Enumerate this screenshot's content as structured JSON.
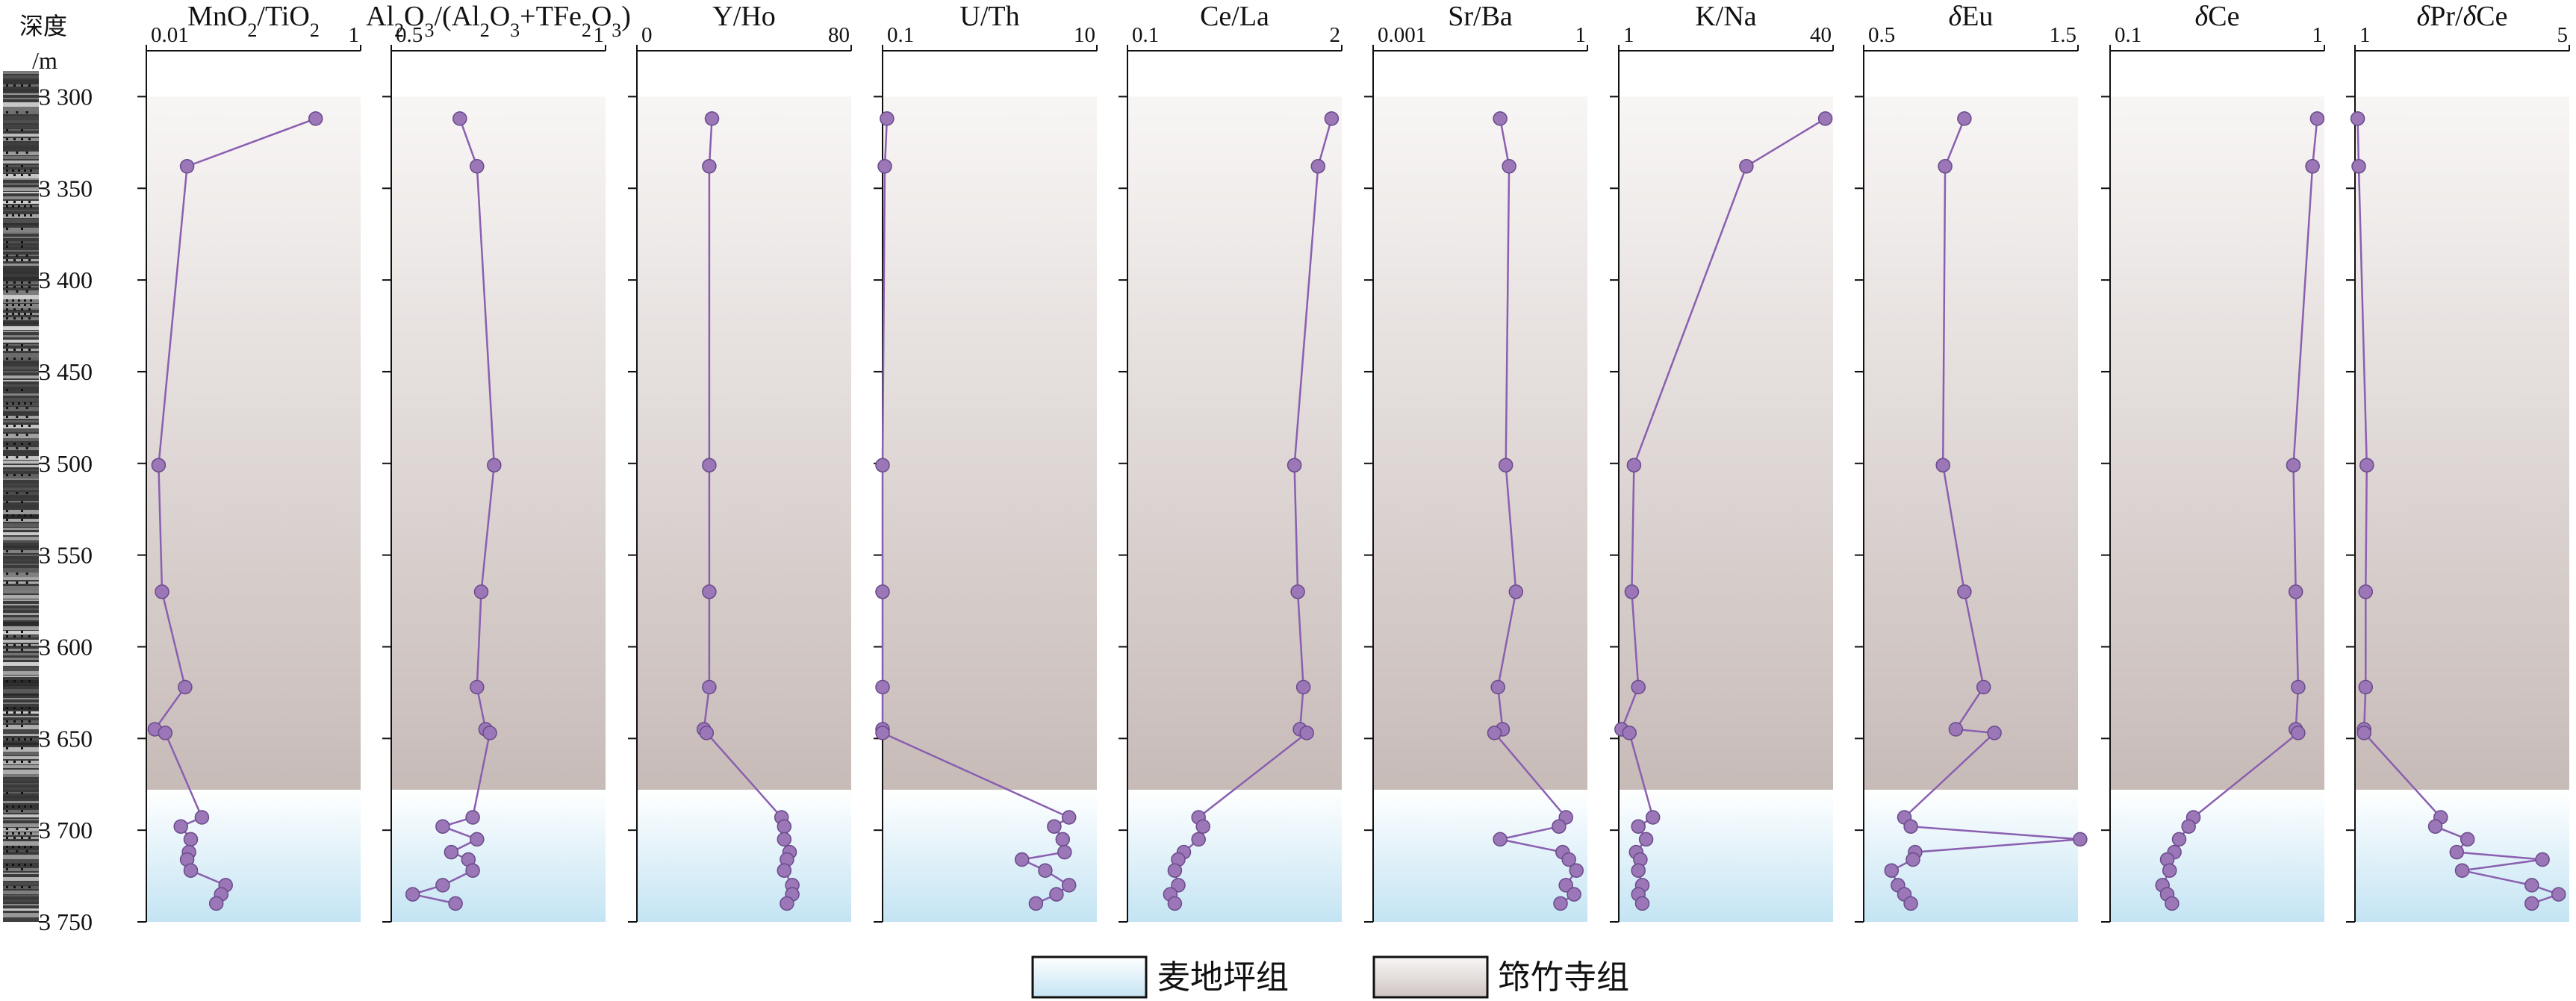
{
  "chart_data": {
    "type": "scatter",
    "depth_axis": {
      "title_line1": "深度",
      "title_line2": "/m",
      "ylim": [
        3275,
        3750
      ],
      "ticks": [
        3300,
        3350,
        3400,
        3450,
        3500,
        3550,
        3600,
        3650,
        3700,
        3750
      ],
      "tick_labels": [
        "3 300",
        "3 350",
        "3 400",
        "3 450",
        "3 500",
        "3 550",
        "3 600",
        "3 650",
        "3 700",
        "3 750"
      ]
    },
    "formation_boundary_depth": 3678,
    "depths": [
      3312,
      3338,
      3501,
      3570,
      3622,
      3645,
      3647,
      3693,
      3698,
      3705,
      3712,
      3716,
      3722,
      3730,
      3735,
      3740
    ],
    "panels": [
      {
        "id": "mno2-tio2",
        "title": "MnO2/TiO2",
        "scale": "log",
        "xlim": [
          0.01,
          1
        ],
        "tick_labels": [
          "0.01",
          "1"
        ],
        "values": [
          0.38,
          0.024,
          0.013,
          0.014,
          0.023,
          0.012,
          0.015,
          0.033,
          0.021,
          0.026,
          0.025,
          0.024,
          0.026,
          0.055,
          0.05,
          0.045
        ]
      },
      {
        "id": "al-ratio",
        "title": "Al2O3/(Al2O3+TFe2O3)",
        "scale": "linear",
        "xlim": [
          0.5,
          1
        ],
        "tick_labels": [
          "0.5",
          "1"
        ],
        "values": [
          0.66,
          0.7,
          0.74,
          0.71,
          0.7,
          0.72,
          0.73,
          0.69,
          0.62,
          0.7,
          0.64,
          0.68,
          0.69,
          0.62,
          0.55,
          0.65
        ]
      },
      {
        "id": "y-ho",
        "title": "Y/Ho",
        "scale": "linear",
        "xlim": [
          0,
          80
        ],
        "tick_labels": [
          "0",
          "80"
        ],
        "values": [
          28,
          27,
          27,
          27,
          27,
          25,
          26,
          54,
          55,
          55,
          57,
          56,
          55,
          58,
          58,
          56
        ]
      },
      {
        "id": "u-th",
        "title": "U/Th",
        "scale": "log",
        "xlim": [
          0.1,
          10
        ],
        "tick_labels": [
          "0.1",
          "10"
        ],
        "values": [
          0.11,
          0.105,
          0.1,
          0.1,
          0.1,
          0.1,
          0.1,
          5.5,
          4.0,
          4.8,
          5.0,
          2.0,
          3.3,
          5.5,
          4.2,
          2.7
        ]
      },
      {
        "id": "ce-la",
        "title": "Ce/La",
        "scale": "linear",
        "xlim": [
          0.1,
          2
        ],
        "tick_labels": [
          "0.1",
          "2"
        ],
        "values": [
          1.91,
          1.79,
          1.58,
          1.61,
          1.66,
          1.63,
          1.69,
          0.73,
          0.77,
          0.73,
          0.6,
          0.55,
          0.52,
          0.55,
          0.48,
          0.52
        ]
      },
      {
        "id": "sr-ba",
        "title": "Sr/Ba",
        "scale": "log",
        "xlim": [
          0.001,
          1
        ],
        "tick_labels": [
          "0.001",
          "1"
        ],
        "values": [
          0.06,
          0.08,
          0.072,
          0.1,
          0.056,
          0.065,
          0.05,
          0.5,
          0.4,
          0.06,
          0.45,
          0.55,
          0.7,
          0.5,
          0.65,
          0.42
        ]
      },
      {
        "id": "k-na",
        "title": "K/Na",
        "scale": "log",
        "xlim": [
          1,
          40
        ],
        "tick_labels": [
          "1",
          "40"
        ],
        "values": [
          35,
          9,
          1.3,
          1.25,
          1.4,
          1.05,
          1.2,
          1.8,
          1.4,
          1.6,
          1.35,
          1.45,
          1.4,
          1.5,
          1.4,
          1.5
        ]
      },
      {
        "id": "delta-eu",
        "title": "δEu",
        "scale": "linear",
        "xlim": [
          0.5,
          1.5
        ],
        "tick_labels": [
          "0.5",
          "1.5"
        ],
        "values": [
          0.97,
          0.88,
          0.87,
          0.97,
          1.06,
          0.93,
          1.11,
          0.69,
          0.72,
          1.51,
          0.74,
          0.73,
          0.63,
          0.66,
          0.69,
          0.72
        ]
      },
      {
        "id": "delta-ce",
        "title": "δCe",
        "scale": "linear",
        "xlim": [
          0.1,
          1
        ],
        "tick_labels": [
          "0.1",
          "1"
        ],
        "values": [
          0.97,
          0.95,
          0.87,
          0.88,
          0.89,
          0.88,
          0.89,
          0.45,
          0.43,
          0.39,
          0.37,
          0.34,
          0.35,
          0.32,
          0.34,
          0.36
        ]
      },
      {
        "id": "delta-pr-delta-ce",
        "title": "δPr/δCe",
        "scale": "linear",
        "xlim": [
          1,
          5
        ],
        "tick_labels": [
          "1",
          "5"
        ],
        "values": [
          1.05,
          1.07,
          1.22,
          1.2,
          1.2,
          1.17,
          1.17,
          2.6,
          2.5,
          3.1,
          2.9,
          4.5,
          3.0,
          4.3,
          4.8,
          4.3
        ]
      }
    ],
    "legend": [
      {
        "label": "麦地坪组",
        "color": "#cfe9f6"
      },
      {
        "label": "筇竹寺组",
        "color": "#d8d0cc"
      }
    ],
    "colors": {
      "marker_fill": "#9b77b8",
      "marker_stroke": "#6a4a8a",
      "line": "#8a5fb0",
      "upper_zone_top": "#f8f6f5",
      "upper_zone_bottom": "#c7bbb8",
      "lower_zone_top": "#ffffff",
      "lower_zone_bottom": "#c4e4f3"
    }
  }
}
